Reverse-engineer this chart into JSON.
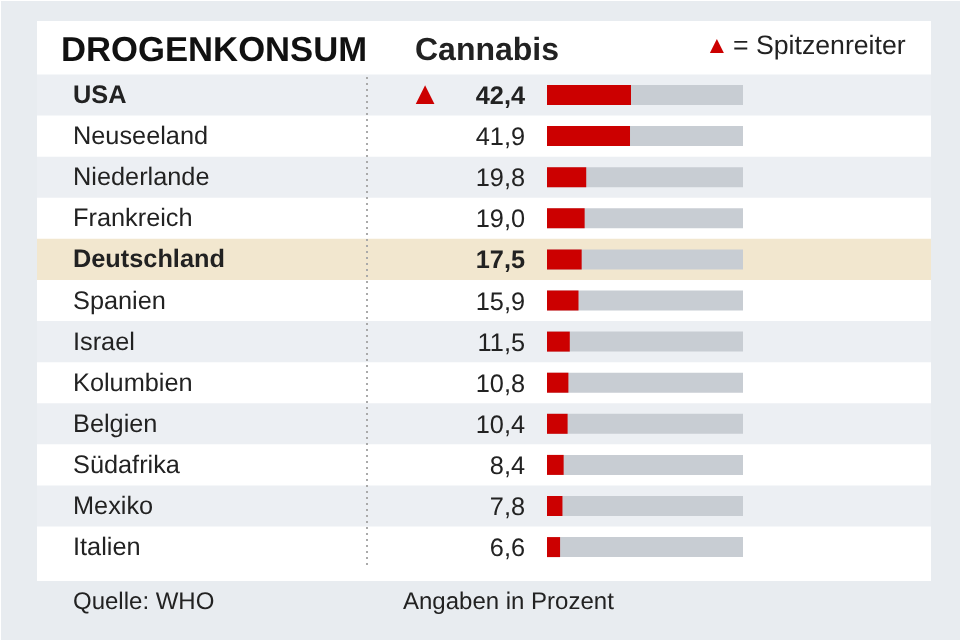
{
  "chart_data": {
    "type": "bar",
    "orientation": "horizontal",
    "title": "DROGENKONSUM",
    "subtitle": "Cannabis",
    "categories": [
      "USA",
      "Neuseeland",
      "Niederlande",
      "Frankreich",
      "Deutschland",
      "Spanien",
      "Israel",
      "Kolumbien",
      "Belgien",
      "Südafrika",
      "Mexiko",
      "Italien"
    ],
    "values": [
      42.4,
      41.9,
      19.8,
      19.0,
      17.5,
      15.9,
      11.5,
      10.8,
      10.4,
      8.4,
      7.8,
      6.6
    ],
    "value_labels": [
      "42,4",
      "41,9",
      "19,8",
      "19,0",
      "17,5",
      "15,9",
      "11,5",
      "10,8",
      "10,4",
      "8,4",
      "7,8",
      "6,6"
    ],
    "color": "#cc0000",
    "tick_labels": false,
    "grid": false,
    "bands": [
      {
        "axis": "y",
        "from": "Deutschland",
        "to": "Deutschland",
        "color": "#f2e7cf"
      }
    ],
    "annotations": [
      "▲",
      "= Spitzenreiter",
      "Quelle: WHO",
      "Angaben in Prozent"
    ]
  }
}
